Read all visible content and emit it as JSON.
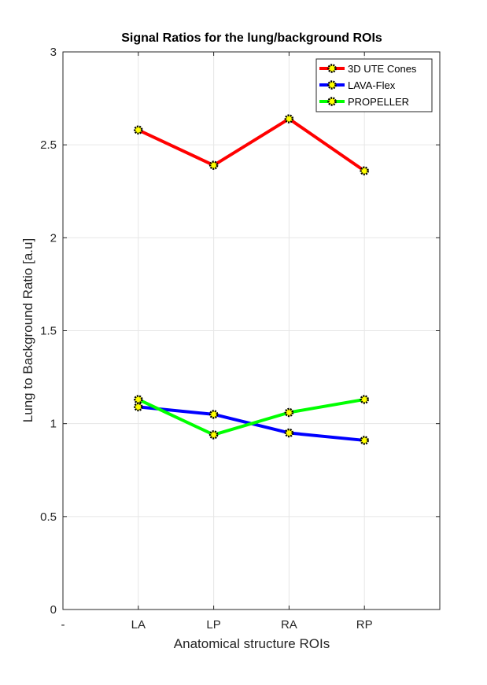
{
  "chart_data": {
    "type": "line",
    "title": "Signal Ratios for the lung/background ROIs",
    "xlabel": "Anatomical structure ROIs",
    "ylabel": "Lung to Background Ratio [a.u]",
    "x_tick_labels": [
      "-",
      "LA",
      "LP",
      "RA",
      "RP"
    ],
    "categories": [
      "LA",
      "LP",
      "RA",
      "RP"
    ],
    "x_positions": [
      1,
      2,
      3,
      4
    ],
    "xlim": [
      0,
      5
    ],
    "ylim": [
      0,
      3
    ],
    "y_ticks": [
      0,
      0.5,
      1,
      1.5,
      2,
      2.5,
      3
    ],
    "y_tick_labels": [
      "0",
      "0.5",
      "1",
      "1.5",
      "2",
      "2.5",
      "3"
    ],
    "grid": true,
    "legend_position": "top-right",
    "marker": {
      "edge_color": "#000000",
      "face_color": "#ffff00"
    },
    "series": [
      {
        "name": "3D UTE Cones",
        "color": "#ff0000",
        "values": [
          2.58,
          2.39,
          2.64,
          2.36
        ]
      },
      {
        "name": "LAVA-Flex",
        "color": "#0000ff",
        "values": [
          1.09,
          1.05,
          0.95,
          0.91
        ]
      },
      {
        "name": "PROPELLER",
        "color": "#00ff00",
        "values": [
          1.13,
          0.94,
          1.06,
          1.13
        ]
      }
    ]
  }
}
